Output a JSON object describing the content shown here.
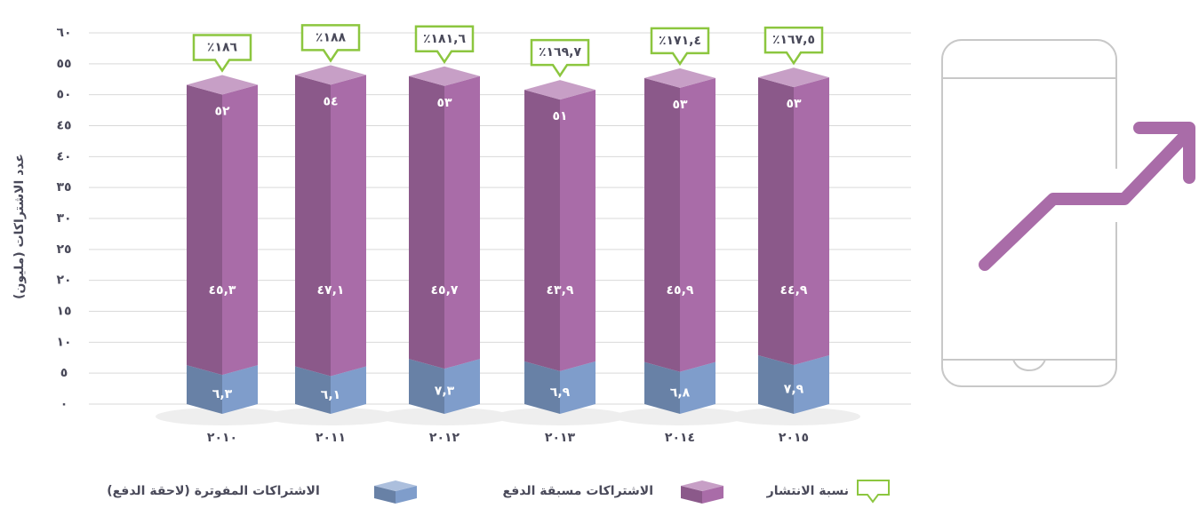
{
  "chart_data": {
    "type": "stacked-bar-3d",
    "y_label": "عدد الاشتراكات (مليون)",
    "categories": [
      "٢٠١٠",
      "٢٠١١",
      "٢٠١٢",
      "٢٠١٣",
      "٢٠١٤",
      "٢٠١٥"
    ],
    "series": [
      {
        "name": "الاشتراكات مسبقة الدفع",
        "color": "#a96ca8",
        "values": [
          45.3,
          47.1,
          45.7,
          43.9,
          45.9,
          44.9
        ],
        "value_labels": [
          "٤٥,٣",
          "٤٧,١",
          "٤٥,٧",
          "٤٣,٩",
          "٤٥,٩",
          "٤٤,٩"
        ]
      },
      {
        "name": "الاشتراكات المفوترة (لاحقة  الدفع)",
        "color": "#7f9dcb",
        "values": [
          6.3,
          6.1,
          7.3,
          6.9,
          6.8,
          7.9
        ],
        "value_labels": [
          "٦,٣",
          "٦,١",
          "٧,٣",
          "٦,٩",
          "٦,٨",
          "٧,٩"
        ]
      }
    ],
    "totals": {
      "values": [
        52,
        54,
        53,
        51,
        53,
        53
      ],
      "value_labels": [
        "٥٢",
        "٥٤",
        "٥٣",
        "٥١",
        "٥٣",
        "٥٣"
      ]
    },
    "penetration": {
      "name": "نسبة الانتشار",
      "color": "#8cc63f",
      "values": [
        186,
        188,
        181.6,
        169.7,
        171.4,
        167.5
      ],
      "value_labels": [
        "٪١٨٦",
        "٪١٨٨",
        "٪١٨١,٦",
        "٪١٦٩,٧",
        "٪١٧١,٤",
        "٪١٦٧,٥"
      ]
    },
    "ylim": [
      0,
      60
    ],
    "yticks": [
      {
        "value": 0,
        "label": "٠"
      },
      {
        "value": 5,
        "label": "٥"
      },
      {
        "value": 10,
        "label": "١٠"
      },
      {
        "value": 15,
        "label": "١٥"
      },
      {
        "value": 20,
        "label": "٢٠"
      },
      {
        "value": 25,
        "label": "٢٥"
      },
      {
        "value": 30,
        "label": "٣٠"
      },
      {
        "value": 35,
        "label": "٣٥"
      },
      {
        "value": 40,
        "label": "٤٠"
      },
      {
        "value": 45,
        "label": "٤٥"
      },
      {
        "value": 50,
        "label": "٥٠"
      },
      {
        "value": 55,
        "label": "٥٥"
      },
      {
        "value": 60,
        "label": "٦٠"
      }
    ],
    "grid": true
  }
}
